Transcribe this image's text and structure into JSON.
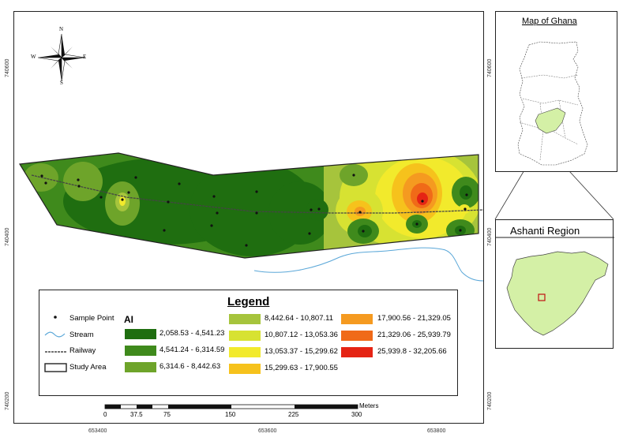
{
  "coords": {
    "y_top": "740600",
    "y_mid": "740400",
    "y_bot": "740200",
    "x_left": "653400",
    "x_mid": "653600",
    "x_right": "653800"
  },
  "compass": {
    "n": "N",
    "s": "S",
    "e": "E",
    "w": "W"
  },
  "ghana": {
    "title": "Map of Ghana"
  },
  "ashanti": {
    "title": "Ashanti Region"
  },
  "legend": {
    "title": "Legend",
    "ai_label": "AI",
    "items": [
      {
        "label": "Sample Point",
        "symbol": "point-icon"
      },
      {
        "label": "Stream",
        "symbol": "stream-icon"
      },
      {
        "label": "Railway",
        "symbol": "railway-icon"
      },
      {
        "label": "Study Area",
        "symbol": "study-area-icon"
      }
    ],
    "classes": [
      {
        "range": "2,058.53 - 4,541.23",
        "color": "#1f6e10"
      },
      {
        "range": "4,541.24 - 6,314.59",
        "color": "#3f8a1c"
      },
      {
        "range": "6,314.6 - 8,442.63",
        "color": "#6ea42a"
      },
      {
        "range": "8,442.64 - 10,807.11",
        "color": "#a6c43c"
      },
      {
        "range": "10,807.12 - 13,053.36",
        "color": "#d7e232"
      },
      {
        "range": "13,053.37 - 15,299.62",
        "color": "#f2ea2c"
      },
      {
        "range": "15,299.63 - 17,900.55",
        "color": "#f6c21c"
      },
      {
        "range": "17,900.56 - 21,329.05",
        "color": "#f59a20"
      },
      {
        "range": "21,329.06 - 25,939.79",
        "color": "#f06a18"
      },
      {
        "range": "25,939.8 - 32,205.66",
        "color": "#e52414"
      }
    ]
  },
  "scalebar": {
    "labels": [
      "0",
      "37.5",
      "75",
      "150",
      "225",
      "300"
    ],
    "unit": "Meters"
  }
}
